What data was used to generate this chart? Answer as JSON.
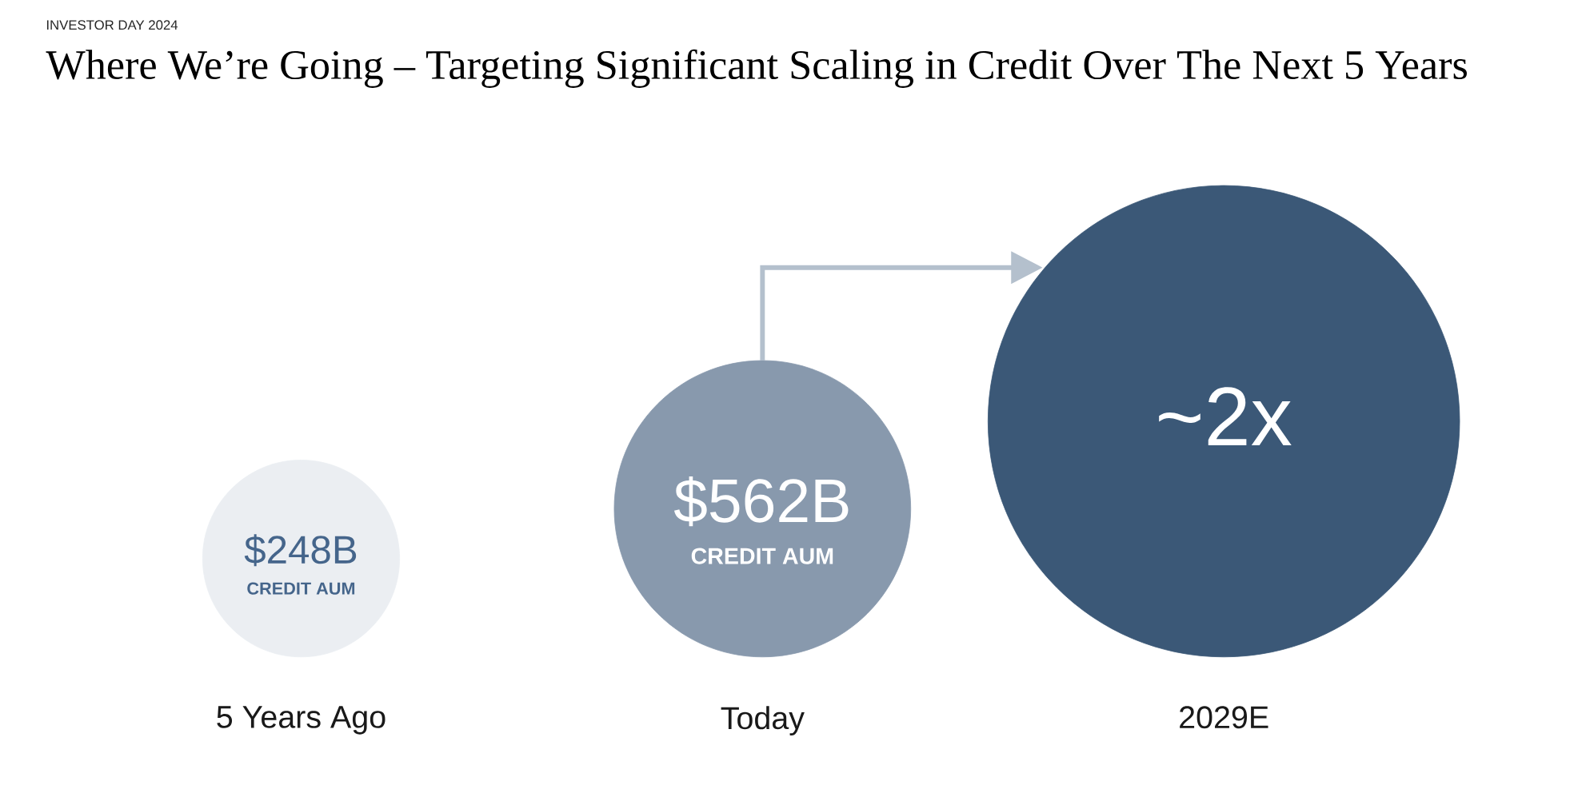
{
  "chart_data": {
    "type": "other",
    "title": "Where We’re Going – Targeting Significant Scaling in Credit Over The Next 5 Years",
    "categories": [
      "5 Years Ago",
      "Today",
      "2029E"
    ],
    "values": [
      248,
      562,
      null
    ],
    "colors": [
      "#ebeef2",
      "#8899ad",
      "#3b5877"
    ],
    "value_labels": [
      "$248B",
      "$562B",
      "~2x"
    ],
    "annotations": [
      "INVESTOR DAY 2024",
      {
        "text": "CREDIT AUM",
        "x": "5 Years Ago"
      },
      {
        "text": "CREDIT AUM",
        "x": "Today"
      }
    ]
  }
}
